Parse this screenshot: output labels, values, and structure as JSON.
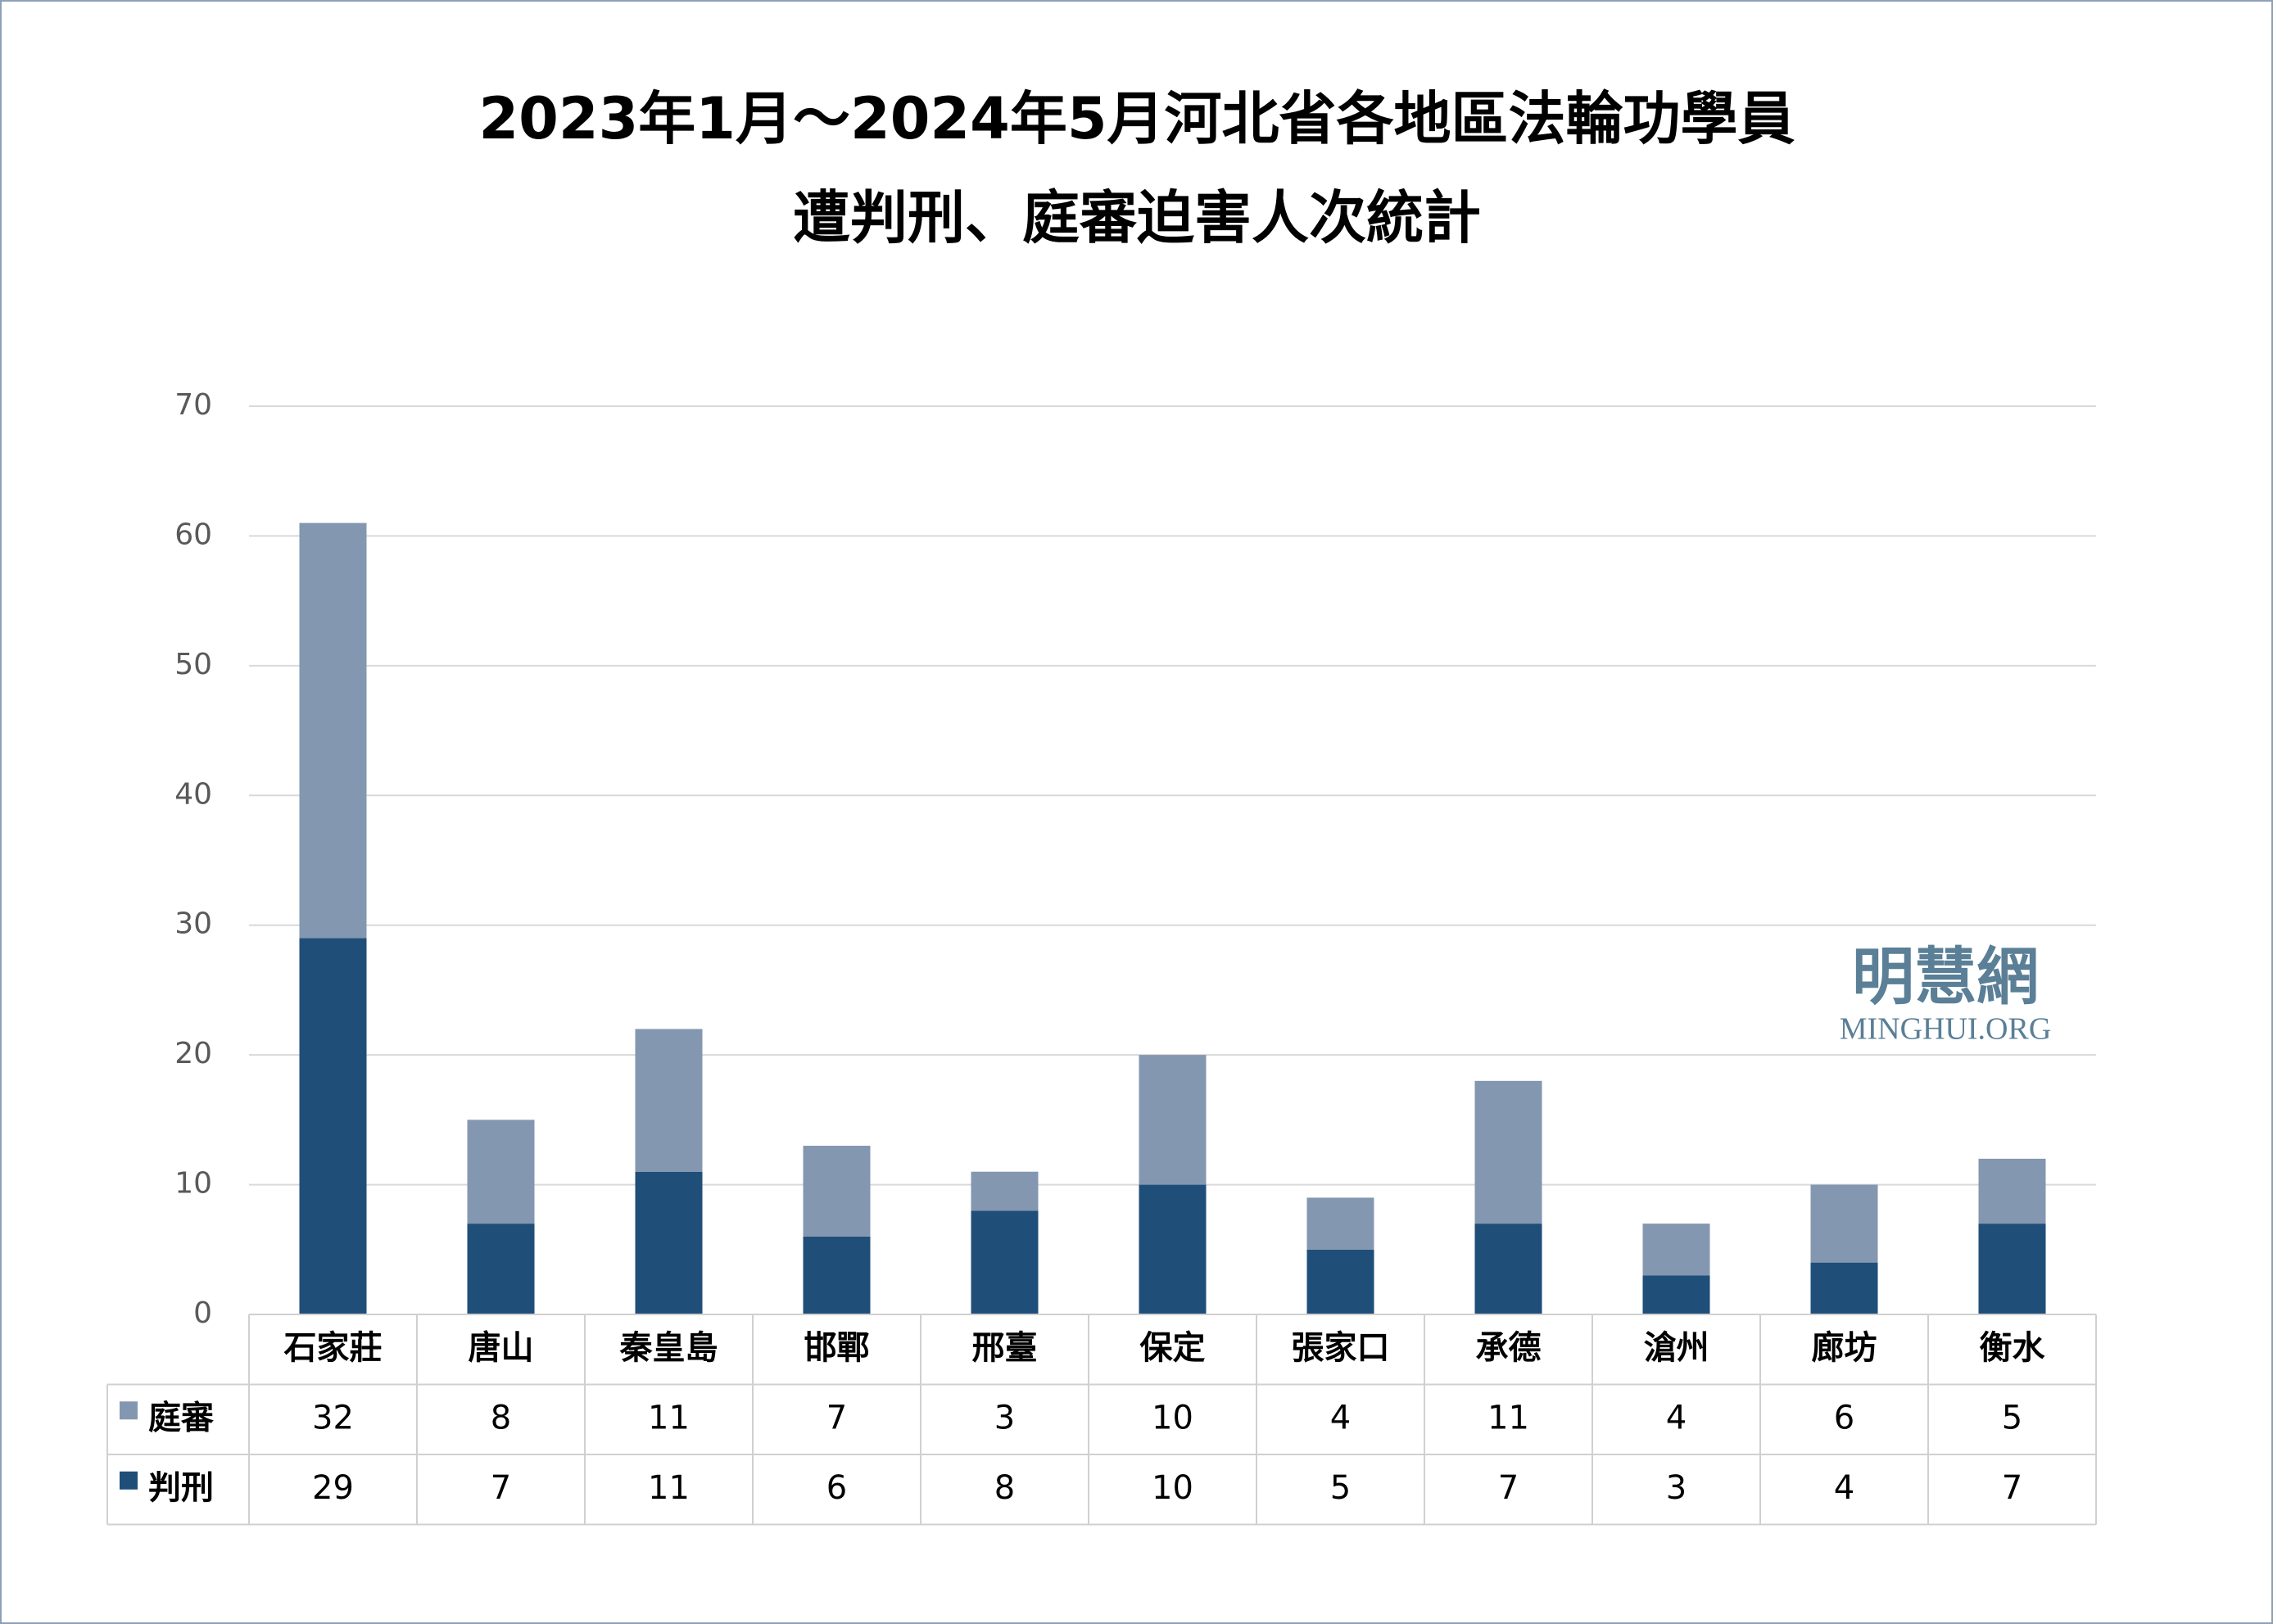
{
  "chart_data": {
    "type": "stacked_bar",
    "title": [
      "2023年1月～2024年5月河北省各地區法輪功學員",
      "遭判刑、庭審迫害人次統計"
    ],
    "categories": [
      "石家莊",
      "唐山",
      "秦皇島",
      "邯鄲",
      "邢臺",
      "保定",
      "張家口",
      "承德",
      "滄州",
      "廊坊",
      "衡水"
    ],
    "series": [
      {
        "name": "判刑",
        "color": "#1f4e79",
        "values": [
          29,
          7,
          11,
          6,
          8,
          10,
          5,
          7,
          3,
          4,
          7
        ]
      },
      {
        "name": "庭審",
        "color": "#8497b0",
        "values": [
          32,
          8,
          11,
          7,
          3,
          10,
          4,
          11,
          4,
          6,
          5
        ]
      }
    ],
    "ylim": [
      0,
      70
    ],
    "yticks": [
      0,
      10,
      20,
      30,
      40,
      50,
      60,
      70
    ],
    "grid": true,
    "watermark": [
      "明慧網",
      "MINGHUI.ORG"
    ]
  }
}
